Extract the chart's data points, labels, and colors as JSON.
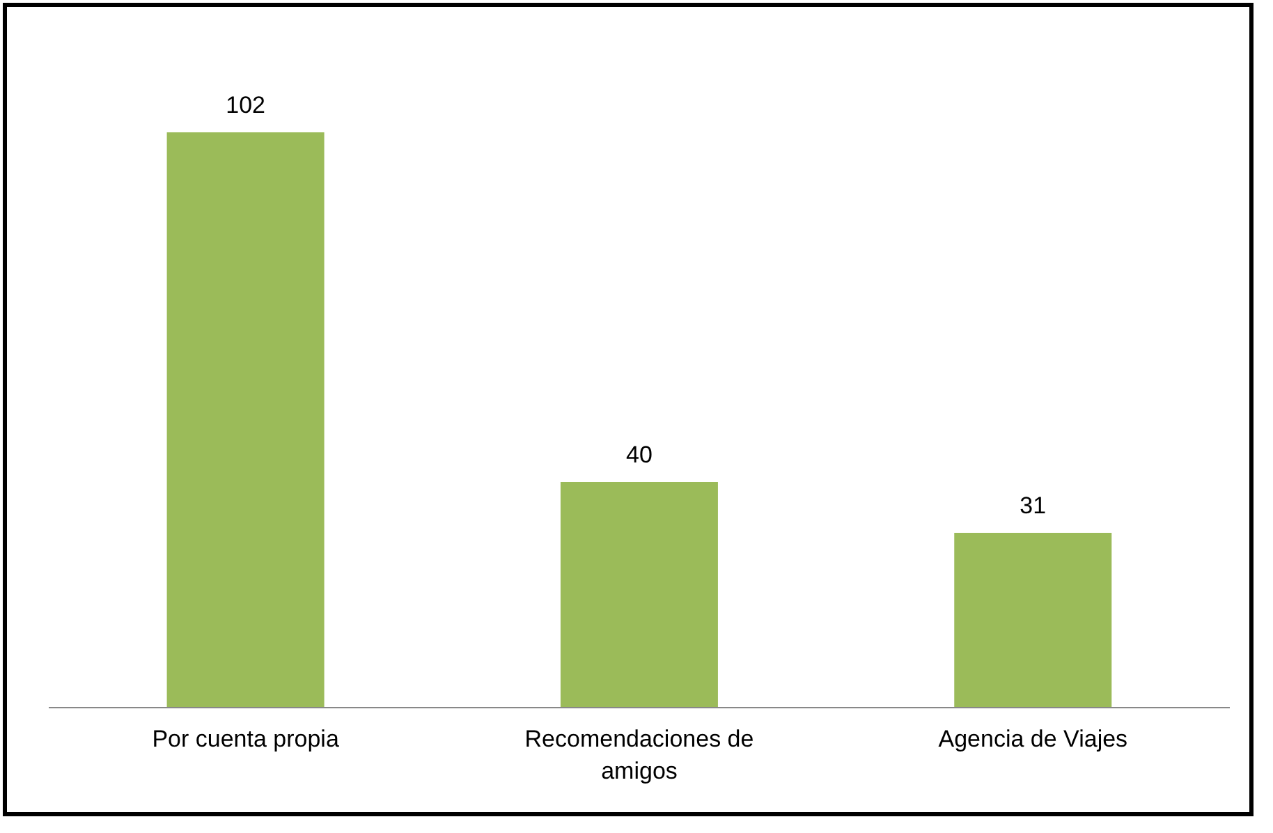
{
  "chart_data": {
    "type": "bar",
    "categories": [
      "Por cuenta propia",
      "Recomendaciones de amigos",
      "Agencia de Viajes"
    ],
    "values": [
      102,
      40,
      31
    ],
    "color": "#9bbb59",
    "data_labels": true,
    "legend": false
  }
}
